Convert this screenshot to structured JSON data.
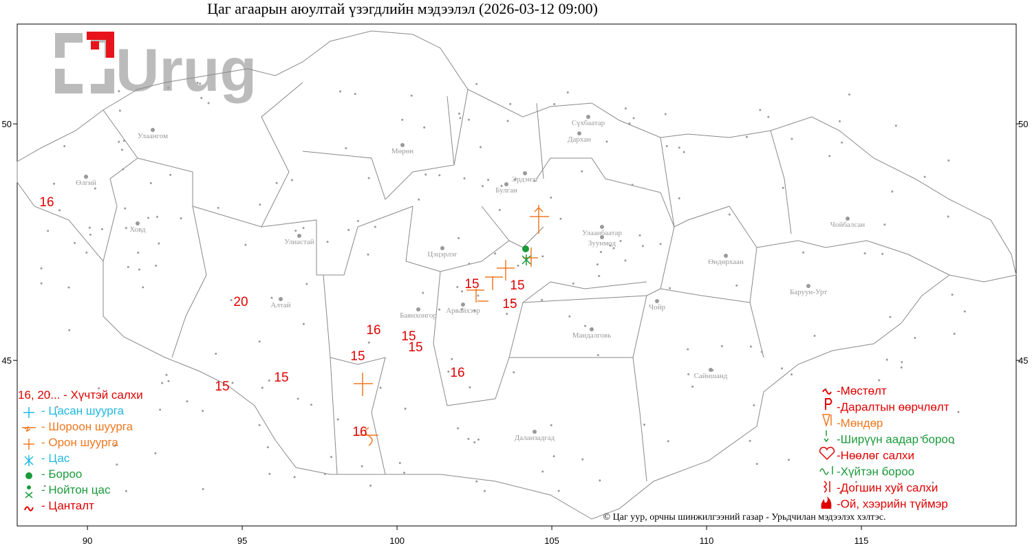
{
  "title": "Цаг агаарын аюултай үзэгдлийн мэдээлэл (2026-03-12 09:00)",
  "logo": "Urug",
  "map": {
    "xlim": [
      87.73,
      120
    ],
    "ylim": [
      41.5,
      52.11
    ],
    "xticks": [
      90,
      95,
      100,
      105,
      110,
      115
    ],
    "yticks": [
      45,
      50
    ]
  },
  "cities": [
    "Улаангом",
    "Өлгий",
    "Ховд",
    "Улиастай",
    "Алтай",
    "Мөрөн",
    "Цэцэрлэг",
    "Баянхонгор",
    "Арвайхээр",
    "Булган",
    "Эрдэнэт",
    "Сүхбаатар",
    "Дархан",
    "Улаанбаатар",
    "Зуунмод",
    "Өндөрхаан",
    "Чойбалсан",
    "Баруун-Урт",
    "Чойр",
    "Мандалговь",
    "Сайншанд",
    "Даланзадгад"
  ],
  "wind_labels": [
    16,
    20,
    15,
    15,
    16,
    15,
    15,
    15,
    16,
    15,
    15,
    15,
    16
  ],
  "legend_left": [
    "16, 20... - Хүчтэй салхи",
    "- Цасан шуурга",
    "- Шороон шуурга",
    "- Орон шуурга",
    "- Цас",
    "- Бороо",
    "- Нойтон цас",
    "- Цанталт"
  ],
  "legend_right": [
    "-Мөстөлт",
    "-Даралтын өөрчлөлт",
    "-Мөндөр",
    "-Ширүүн аадар бороо",
    "-Нөөлөг салхи",
    "-Хүйтэн бороо",
    "-Догшин хуй салхи",
    "-Ой, хээрийн түймэр"
  ],
  "credit": "© Цаг уур, орчны шинжилгээний газар - Урьдчилан мэдээлэх хэлтэс."
}
